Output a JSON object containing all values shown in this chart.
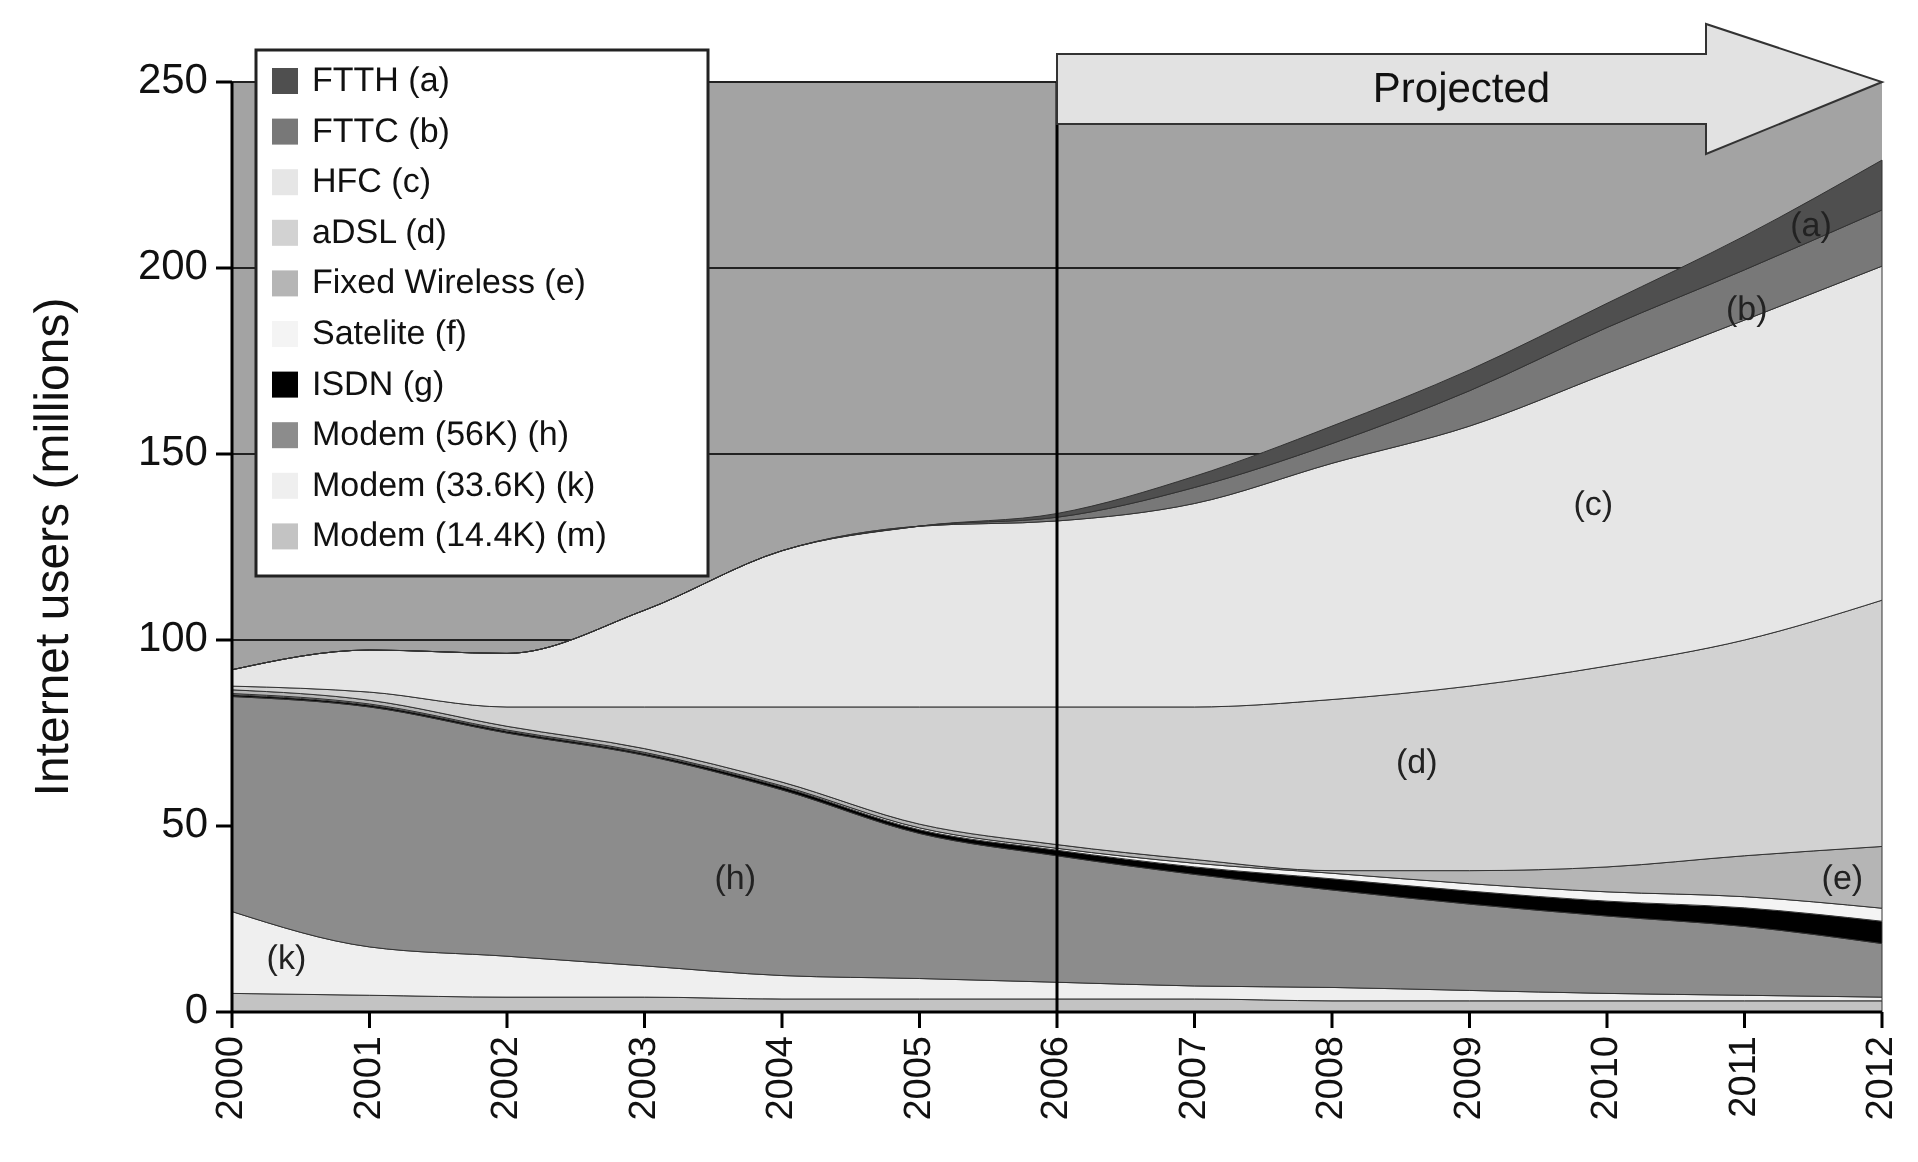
{
  "chart_data": {
    "type": "area",
    "stacked": true,
    "ylabel": "Internet users (millions)",
    "x": [
      2000,
      2001,
      2002,
      2003,
      2004,
      2005,
      2006,
      2007,
      2008,
      2009,
      2010,
      2011,
      2012
    ],
    "xlim": [
      2000,
      2012
    ],
    "xticks": [
      2000,
      2001,
      2002,
      2003,
      2004,
      2005,
      2006,
      2007,
      2008,
      2009,
      2010,
      2011,
      2012
    ],
    "ylim": [
      0,
      250
    ],
    "yticks": [
      0,
      50,
      100,
      150,
      200,
      250
    ],
    "grid": "y",
    "legend": "top left",
    "series": [
      {
        "name": "Modem (14.4K) (m)",
        "color": "#c3c3c3",
        "values": [
          5,
          4.5,
          4,
          4,
          3.5,
          3.5,
          3.5,
          3.5,
          3,
          3,
          3,
          3,
          3
        ]
      },
      {
        "name": "Modem (33.6K) (k)",
        "color": "#efefef",
        "values": [
          22,
          13,
          11,
          8.4,
          6.3,
          5.5,
          4.5,
          3.5,
          3.6,
          2.8,
          2,
          1.5,
          1
        ]
      },
      {
        "name": "Modem (56K) (h)",
        "color": "#8c8c8c",
        "values": [
          57.8,
          64.5,
          60,
          56.6,
          49.9,
          39,
          34,
          30,
          26.2,
          23.2,
          20.8,
          18.5,
          14.4
        ]
      },
      {
        "name": "ISDN (g)",
        "color": "#000000",
        "values": [
          0.5,
          0.5,
          0.5,
          0.5,
          0.8,
          1,
          1.5,
          2,
          3,
          3.5,
          4,
          5,
          6
        ]
      },
      {
        "name": "Satelite (f)",
        "color": "#f4f4f4",
        "values": [
          0.3,
          0.3,
          0.3,
          0.3,
          0.3,
          0.5,
          0.5,
          1,
          1.5,
          2,
          2.5,
          3,
          3.5
        ]
      },
      {
        "name": "Fixed Wireless (e)",
        "color": "#b5b5b5",
        "values": [
          1,
          1,
          1,
          1,
          1,
          1,
          1,
          1,
          0.7,
          3.5,
          6.7,
          11,
          16.6
        ]
      },
      {
        "name": "aDSL (d)",
        "color": "#d2d2d2",
        "values": [
          1,
          2.2,
          5.2,
          11.2,
          20.2,
          31.5,
          37,
          41,
          46,
          49.6,
          54,
          58,
          66.2
        ]
      },
      {
        "name": "HFC (c)",
        "color": "#e6e6e6",
        "values": [
          4.4,
          11.3,
          14.4,
          26,
          42,
          48.6,
          50,
          54.7,
          63.5,
          69.9,
          78.7,
          86,
          89.8
        ]
      },
      {
        "name": "FTTC (b)",
        "color": "#787878",
        "values": [
          0,
          0,
          0,
          0,
          0,
          0,
          1,
          4.3,
          5.3,
          9.5,
          12.3,
          13.5,
          15.1
        ]
      },
      {
        "name": "FTTH (a)",
        "color": "#4f4f4f",
        "values": [
          0,
          0,
          0,
          0,
          0,
          0,
          1,
          3,
          4.7,
          5.6,
          6.5,
          9.1,
          13.4
        ]
      }
    ],
    "ref_lines": [
      {
        "axis": "x",
        "value": 2006
      }
    ],
    "annotations": [
      "Projected",
      "(a)",
      "(b)",
      "(c)",
      "(d)",
      "(e)",
      "(h)",
      "(k)"
    ]
  }
}
